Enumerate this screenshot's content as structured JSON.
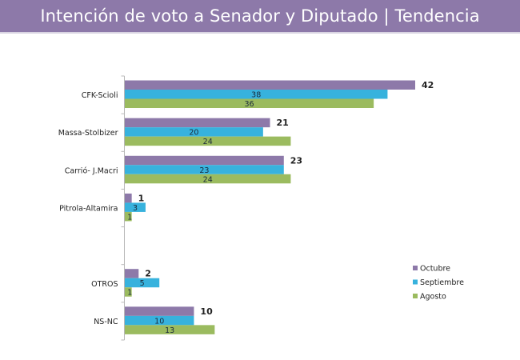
{
  "header": {
    "title": "Intención de voto a Senador y Diputado | Tendencia"
  },
  "colors": {
    "header_bg": "#8d79a9",
    "Octubre": "#8d79a9",
    "Septiembre": "#37b2dd",
    "Agosto": "#9bbb5f"
  },
  "chart_data": {
    "type": "bar",
    "orientation": "horizontal",
    "title": "Intención de voto a Senador y Diputado | Tendencia",
    "xlabel": "",
    "ylabel": "",
    "categories": [
      "CFK-Scioli",
      "Massa-Stolbizer",
      "Carrió- J.Macri",
      "Pitrola-Altamira",
      "",
      "OTROS",
      "NS-NC"
    ],
    "series": [
      {
        "name": "Octubre",
        "color": "#8d79a9",
        "values": [
          42,
          21,
          23,
          1,
          null,
          2,
          10
        ]
      },
      {
        "name": "Septiembre",
        "color": "#37b2dd",
        "values": [
          38,
          20,
          23,
          3,
          null,
          5,
          10
        ]
      },
      {
        "name": "Agosto",
        "color": "#9bbb5f",
        "values": [
          36,
          24,
          24,
          1,
          null,
          1,
          13
        ]
      }
    ],
    "xlim": [
      0,
      42
    ],
    "grid": false,
    "legend": {
      "position": "bottom-right",
      "entries": [
        "Octubre",
        "Septiembre",
        "Agosto"
      ]
    }
  }
}
